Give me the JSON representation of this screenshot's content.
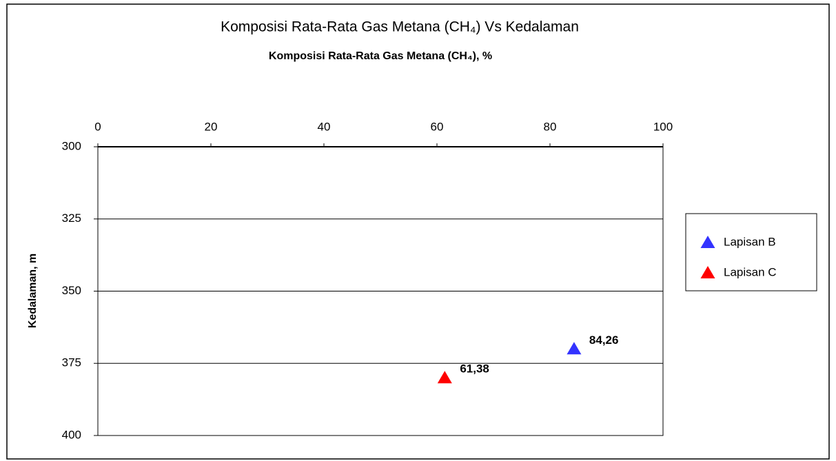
{
  "chart_data": {
    "type": "scatter",
    "title": "Komposisi Rata-Rata Gas Metana (CH₄) Vs Kedalaman",
    "x_label": "Komposisi Rata-Rata Gas Metana (CH₄), %",
    "y_label": "Kedalaman, m",
    "xlim": [
      0,
      100
    ],
    "xticks": [
      0,
      20,
      40,
      60,
      80,
      100
    ],
    "x_axis_position": "top",
    "ylim": [
      300,
      400
    ],
    "yticks": [
      300,
      325,
      350,
      375,
      400
    ],
    "y_reversed": true,
    "grid": true,
    "legend": "right",
    "series": [
      {
        "name": "Lapisan B",
        "color": "#3333ff",
        "x": [
          84.26
        ],
        "values": [
          370
        ],
        "value_labels": [
          "84,26"
        ]
      },
      {
        "name": "Lapisan C",
        "color": "#ff0000",
        "x": [
          61.38
        ],
        "values": [
          380
        ],
        "value_labels": [
          "61,38"
        ]
      }
    ]
  }
}
